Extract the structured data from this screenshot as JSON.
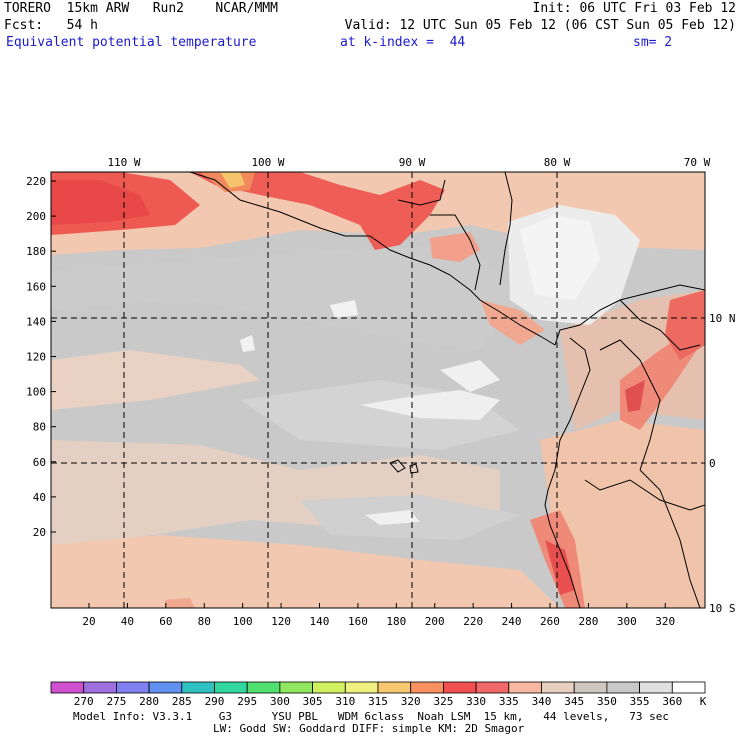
{
  "header": {
    "line1_left": "TORERO  15km ARW   Run2    NCAR/MMM",
    "line1_right": "Init: 06 UTC Fri 03 Feb 12",
    "line2_left": "Fcst:   54 h",
    "line2_right": "Valid: 12 UTC Sun 05 Feb 12 (06 CST Sun 05 Feb 12)",
    "field": "Equivalent potential temperature",
    "level": "at k-index =  44",
    "smoothing": "sm= 2"
  },
  "map": {
    "top_lon_labels": [
      "110 W",
      "100 W",
      "90 W",
      "80 W",
      "70 W"
    ],
    "right_lat_labels": [
      "10 N",
      "0",
      "10 S"
    ],
    "y_ticks": [
      "220",
      "200",
      "180",
      "160",
      "140",
      "120",
      "100",
      "80",
      "60",
      "40",
      "20"
    ],
    "x_ticks": [
      "20",
      "40",
      "60",
      "80",
      "100",
      "120",
      "140",
      "160",
      "180",
      "200",
      "220",
      "240",
      "260",
      "280",
      "300",
      "320"
    ]
  },
  "colorbar": {
    "labels": [
      "270",
      "275",
      "280",
      "285",
      "290",
      "295",
      "300",
      "305",
      "310",
      "315",
      "320",
      "325",
      "330",
      "335",
      "340",
      "345",
      "350",
      "355",
      "360"
    ],
    "unit": "K",
    "colors": [
      "#d050d0",
      "#a070e0",
      "#8080f0",
      "#6090f0",
      "#30c0c0",
      "#30d8a0",
      "#50e070",
      "#90e860",
      "#d0f060",
      "#f0f080",
      "#f8c870",
      "#f89060",
      "#f05050",
      "#f06868",
      "#f8b8a0",
      "#e8d0c0",
      "#d0c8c0",
      "#c8c8c8",
      "#e0e0e0",
      "#ffffff"
    ]
  },
  "model_info": {
    "line1": "Model Info: V3.3.1    G3      YSU PBL   WDM 6class  Noah LSM  15 km,   44 levels,   73 sec",
    "line2": "LW: Godd SW: Goddard DIFF: simple KM: 2D Smagor"
  }
}
